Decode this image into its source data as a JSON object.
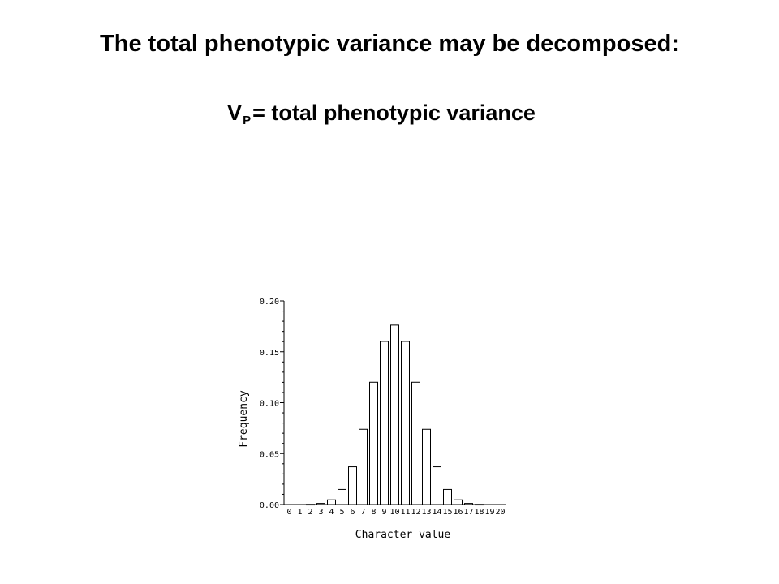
{
  "slide": {
    "title": "The total phenotypic variance may be decomposed:",
    "subtitle": {
      "variable": "V",
      "subscript": "P",
      "rest": "= total phenotypic variance"
    }
  },
  "chart_data": {
    "type": "bar",
    "categories": [
      "0",
      "1",
      "2",
      "3",
      "4",
      "5",
      "6",
      "7",
      "8",
      "9",
      "10",
      "11",
      "12",
      "13",
      "14",
      "15",
      "16",
      "17",
      "18",
      "19",
      "20"
    ],
    "values": [
      0.0,
      0.0,
      0.0002,
      0.0011,
      0.0046,
      0.0148,
      0.037,
      0.0739,
      0.1201,
      0.1602,
      0.1762,
      0.1602,
      0.1201,
      0.0739,
      0.037,
      0.0148,
      0.0046,
      0.0011,
      0.0002,
      0.0,
      0.0
    ],
    "xlabel": "Character value",
    "ylabel": "Frequency",
    "ylim": [
      0,
      0.2
    ],
    "yticks": [
      "0.00",
      "0.05",
      "0.10",
      "0.15",
      "0.20"
    ],
    "colors": {
      "bar_fill": "#ffffff",
      "bar_stroke": "#000000",
      "axis": "#000000"
    }
  }
}
